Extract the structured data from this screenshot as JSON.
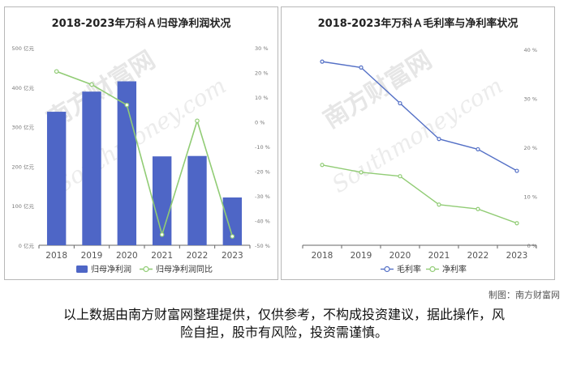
{
  "chart_data": [
    {
      "type": "bar+line",
      "title": "2018-2023年万科Ａ归母净利润状况",
      "categories": [
        "2018",
        "2019",
        "2020",
        "2021",
        "2022",
        "2023"
      ],
      "series": [
        {
          "name": "归母净利润",
          "type": "bar",
          "axis": "left",
          "values": [
            338,
            389,
            415,
            225,
            226,
            121
          ]
        },
        {
          "name": "归母净利润同比",
          "type": "line",
          "axis": "right",
          "values": [
            20.4,
            15.1,
            6.8,
            -45.7,
            0.4,
            -46.4
          ]
        }
      ],
      "left_axis": {
        "ticks": [
          0,
          100,
          200,
          300,
          400,
          500
        ],
        "tick_labels": [
          "0 亿元",
          "100 亿元",
          "200 亿元",
          "300 亿元",
          "400 亿元",
          "500 亿元"
        ],
        "range": [
          0,
          500
        ]
      },
      "right_axis": {
        "ticks": [
          -50,
          -40,
          -30,
          -20,
          -10,
          0,
          10,
          20,
          30
        ],
        "tick_labels": [
          "-50 %",
          "-40 %",
          "-30 %",
          "-20 %",
          "-10 %",
          "0 %",
          "10 %",
          "20 %",
          "30 %"
        ],
        "range": [
          -50,
          30
        ]
      },
      "colors": {
        "bar": "#4e66c6",
        "line": "#91cc75"
      },
      "legend_position": "bottom"
    },
    {
      "type": "line",
      "title": "2018-2023年万科Ａ毛利率与净利率状况",
      "categories": [
        "2018",
        "2019",
        "2020",
        "2021",
        "2022",
        "2023"
      ],
      "series": [
        {
          "name": "毛利率",
          "values": [
            37.5,
            36.3,
            29.0,
            21.7,
            19.6,
            15.2
          ],
          "color": "#5470c6"
        },
        {
          "name": "净利率",
          "values": [
            16.4,
            14.9,
            14.1,
            8.3,
            7.4,
            4.5
          ],
          "color": "#91cc75"
        }
      ],
      "right_axis": {
        "ticks": [
          0,
          10,
          20,
          30,
          40
        ],
        "tick_labels": [
          "0 %",
          "10 %",
          "20 %",
          "30 %",
          "40 %"
        ],
        "range": [
          0,
          40
        ]
      },
      "grid": false,
      "legend_position": "bottom"
    }
  ],
  "credit": "制图：南方财富网",
  "disclaimer": [
    "以上数据由南方财富网整理提供，仅供参考，不构成投资建议，据此操作，风",
    "险自担，股市有风险，投资需谨慎。"
  ],
  "watermark": {
    "text1": "南方财富网",
    "text2": "Southmoney.com"
  }
}
